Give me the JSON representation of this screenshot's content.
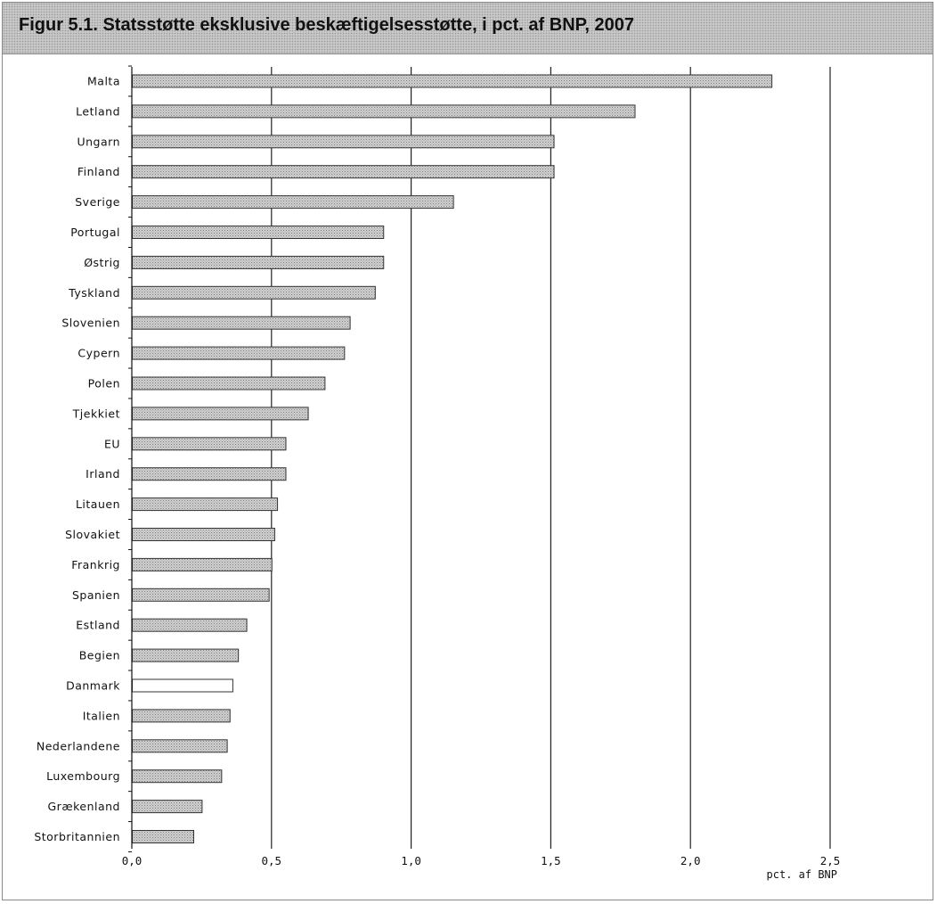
{
  "chart_data": {
    "type": "bar",
    "orientation": "horizontal",
    "title": "Figur 5.1. Statsstøtte eksklusive beskæftigelsesstøtte, i pct. af BNP, 2007",
    "xlabel": "pct. af BNP",
    "ylabel": "",
    "xlim": [
      0,
      2.5
    ],
    "xticks": [
      "0,0",
      "0,5",
      "1,0",
      "1,5",
      "2,0",
      "2,5"
    ],
    "grid": "vertical",
    "categories": [
      "Malta",
      "Letland",
      "Ungarn",
      "Finland",
      "Sverige",
      "Portugal",
      "Østrig",
      "Tyskland",
      "Slovenien",
      "Cypern",
      "Polen",
      "Tjekkiet",
      "EU",
      "Irland",
      "Litauen",
      "Slovakiet",
      "Frankrig",
      "Spanien",
      "Estland",
      "Begien",
      "Danmark",
      "Italien",
      "Nederlandene",
      "Luxembourg",
      "Grækenland",
      "Storbritannien"
    ],
    "values": [
      2.29,
      1.8,
      1.51,
      1.51,
      1.15,
      0.9,
      0.9,
      0.87,
      0.78,
      0.76,
      0.69,
      0.63,
      0.55,
      0.55,
      0.52,
      0.51,
      0.5,
      0.49,
      0.41,
      0.38,
      0.36,
      0.35,
      0.34,
      0.32,
      0.25,
      0.22
    ],
    "highlight": "Danmark",
    "colors": {
      "bar": "#c4c4c4",
      "highlight_bar": "#ffffff",
      "grid": "#222222",
      "bar_border": "#333333"
    }
  }
}
